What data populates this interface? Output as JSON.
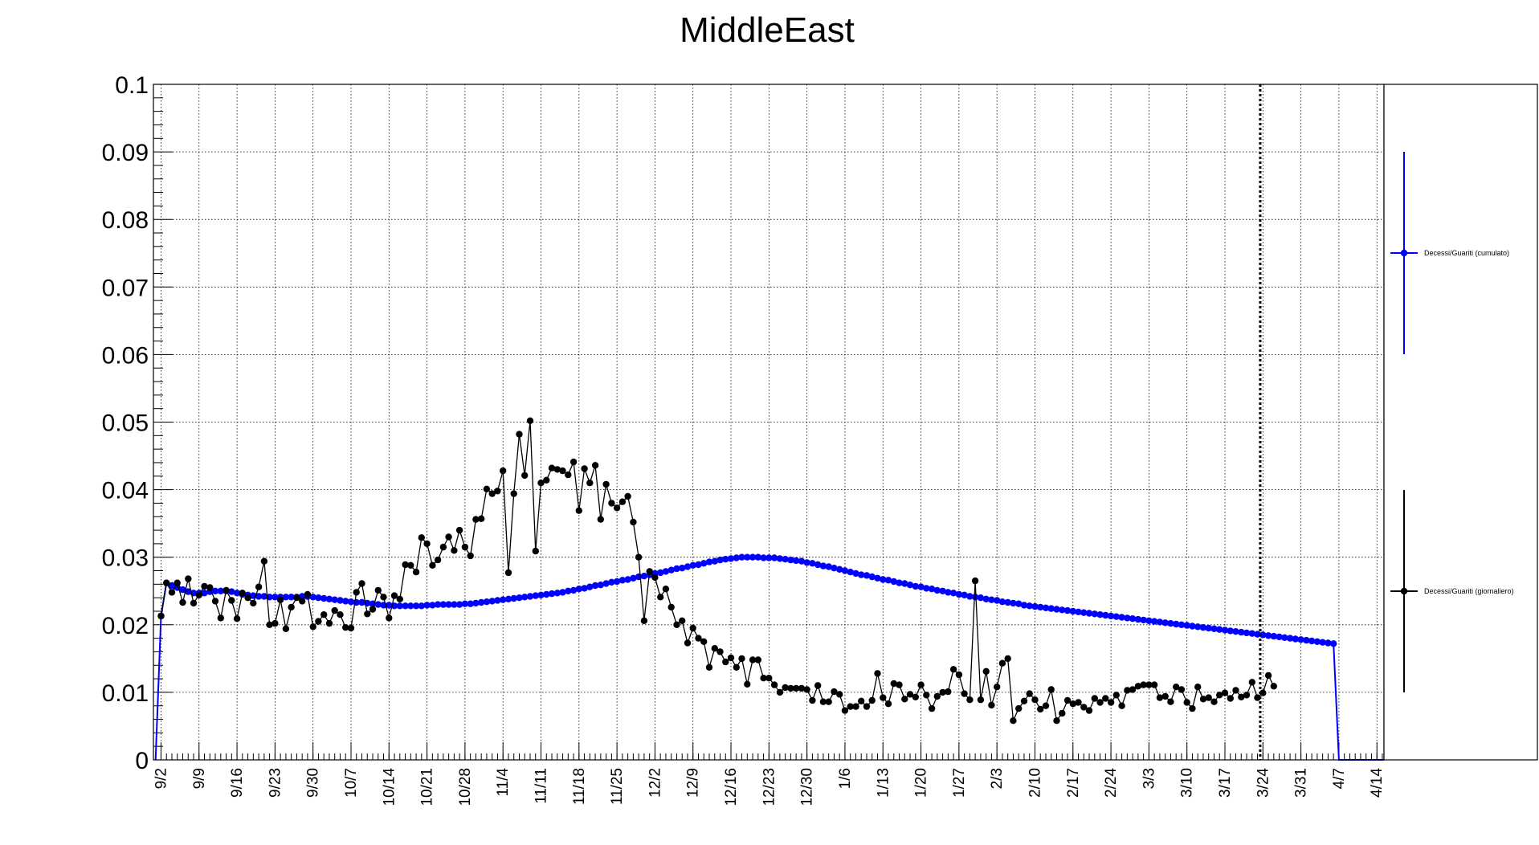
{
  "chart_data": {
    "type": "line",
    "title": "MiddleEast",
    "xlabel": "",
    "ylabel": "",
    "ylim": [
      0,
      0.1
    ],
    "yticks": [
      "0",
      "0.01",
      "0.02",
      "0.03",
      "0.04",
      "0.05",
      "0.06",
      "0.07",
      "0.08",
      "0.09",
      "0.1"
    ],
    "x_range_days": [
      -1.4,
      225.3
    ],
    "x_tick_labels": [
      "9/2",
      "9/9",
      "9/16",
      "9/23",
      "9/30",
      "10/7",
      "10/14",
      "10/21",
      "10/28",
      "11/4",
      "11/11",
      "11/18",
      "11/25",
      "12/2",
      "12/9",
      "12/16",
      "12/23",
      "12/30",
      "1/6",
      "1/13",
      "1/20",
      "1/27",
      "2/3",
      "2/10",
      "2/17",
      "2/24",
      "3/3",
      "3/10",
      "3/17",
      "3/24",
      "3/31",
      "4/7",
      "4/14"
    ],
    "x_tick_label_interval_days": 7,
    "grid": true,
    "marker_line_day": 202.5,
    "legend_position": "right",
    "series": [
      {
        "name": "Decessi/Guariti (cumulato)",
        "color": "#0000ff",
        "day_start": 0,
        "day_step": 1,
        "values": [
          0.0213,
          0.0262,
          0.0258,
          0.0255,
          0.0252,
          0.0249,
          0.0247,
          0.0247,
          0.0247,
          0.0249,
          0.025,
          0.025,
          0.025,
          0.0249,
          0.0247,
          0.0245,
          0.0244,
          0.0243,
          0.0242,
          0.0242,
          0.0241,
          0.0241,
          0.0241,
          0.0241,
          0.0241,
          0.0241,
          0.0242,
          0.0242,
          0.0241,
          0.024,
          0.0239,
          0.0238,
          0.0237,
          0.0236,
          0.0235,
          0.0234,
          0.0233,
          0.0233,
          0.0232,
          0.0231,
          0.023,
          0.0229,
          0.0229,
          0.0228,
          0.0228,
          0.0228,
          0.0228,
          0.0228,
          0.0228,
          0.0229,
          0.0229,
          0.023,
          0.023,
          0.023,
          0.023,
          0.023,
          0.0231,
          0.0231,
          0.0232,
          0.0233,
          0.0234,
          0.0235,
          0.0236,
          0.0237,
          0.0238,
          0.0239,
          0.024,
          0.0241,
          0.0242,
          0.0243,
          0.0244,
          0.0245,
          0.0246,
          0.0247,
          0.0248,
          0.025,
          0.0251,
          0.0253,
          0.0254,
          0.0256,
          0.0258,
          0.0259,
          0.0261,
          0.0263,
          0.0264,
          0.0266,
          0.0267,
          0.0269,
          0.0271,
          0.0272,
          0.0274,
          0.0276,
          0.0277,
          0.0279,
          0.0281,
          0.0283,
          0.0284,
          0.0286,
          0.0288,
          0.0289,
          0.0291,
          0.0293,
          0.0294,
          0.0296,
          0.0297,
          0.0298,
          0.0299,
          0.03,
          0.03,
          0.03,
          0.03,
          0.0299,
          0.0299,
          0.0299,
          0.0298,
          0.0297,
          0.0296,
          0.0295,
          0.0294,
          0.0292,
          0.0291,
          0.0289,
          0.0287,
          0.0286,
          0.0284,
          0.0282,
          0.028,
          0.0278,
          0.0276,
          0.0274,
          0.0273,
          0.0271,
          0.0269,
          0.0267,
          0.0266,
          0.0264,
          0.0262,
          0.0261,
          0.0259,
          0.0257,
          0.0256,
          0.0254,
          0.0253,
          0.0251,
          0.025,
          0.0248,
          0.0247,
          0.0245,
          0.0244,
          0.0242,
          0.0241,
          0.024,
          0.0238,
          0.0237,
          0.0236,
          0.0234,
          0.0233,
          0.0232,
          0.0231,
          0.0229,
          0.0228,
          0.0227,
          0.0226,
          0.0225,
          0.0224,
          0.0223,
          0.0222,
          0.0221,
          0.022,
          0.0219,
          0.0218,
          0.0217,
          0.0216,
          0.0215,
          0.0214,
          0.0213,
          0.0212,
          0.0211,
          0.021,
          0.0209,
          0.0208,
          0.0207,
          0.0206,
          0.0205,
          0.0204,
          0.0203,
          0.0202,
          0.0201,
          0.02,
          0.0199,
          0.0198,
          0.0197,
          0.0196,
          0.0195,
          0.0194,
          0.0193,
          0.0192,
          0.0191,
          0.019,
          0.0189,
          0.0188,
          0.0187,
          0.0186,
          0.0185,
          0.0184,
          0.0183,
          0.0182,
          0.0181,
          0.018,
          0.0179,
          0.0178,
          0.0177,
          0.0176,
          0.0175,
          0.0174,
          0.0173,
          0.0172
        ]
      },
      {
        "name": "Decessi/Guariti (giornaliero)",
        "color": "#000000",
        "day_start": 0,
        "day_step": 1,
        "values": [
          0.0213,
          0.0262,
          0.0248,
          0.0262,
          0.0233,
          0.0268,
          0.0232,
          0.0244,
          0.0257,
          0.0255,
          0.0235,
          0.021,
          0.0251,
          0.0236,
          0.0209,
          0.0247,
          0.024,
          0.0232,
          0.0256,
          0.0294,
          0.02,
          0.0202,
          0.0237,
          0.0194,
          0.0226,
          0.024,
          0.0235,
          0.0245,
          0.0197,
          0.0205,
          0.0215,
          0.0202,
          0.0221,
          0.0215,
          0.0196,
          0.0195,
          0.0248,
          0.0261,
          0.0216,
          0.0223,
          0.0251,
          0.0241,
          0.021,
          0.0243,
          0.0238,
          0.0289,
          0.0288,
          0.0278,
          0.0329,
          0.032,
          0.0288,
          0.0296,
          0.0315,
          0.033,
          0.031,
          0.034,
          0.0315,
          0.0302,
          0.0356,
          0.0357,
          0.0401,
          0.0394,
          0.0398,
          0.0428,
          0.0277,
          0.0394,
          0.0482,
          0.0421,
          0.0502,
          0.0309,
          0.041,
          0.0414,
          0.0432,
          0.043,
          0.0428,
          0.0422,
          0.0441,
          0.0369,
          0.0431,
          0.041,
          0.0436,
          0.0356,
          0.0408,
          0.038,
          0.0373,
          0.0382,
          0.039,
          0.0352,
          0.03,
          0.0206,
          0.0279,
          0.027,
          0.0241,
          0.0253,
          0.0226,
          0.02,
          0.0206,
          0.0173,
          0.0195,
          0.018,
          0.0175,
          0.0137,
          0.0165,
          0.016,
          0.0145,
          0.0151,
          0.0137,
          0.015,
          0.0112,
          0.0148,
          0.0148,
          0.0121,
          0.0121,
          0.0111,
          0.01,
          0.0107,
          0.0106,
          0.0106,
          0.0106,
          0.0104,
          0.0088,
          0.011,
          0.0086,
          0.0086,
          0.0101,
          0.0097,
          0.0073,
          0.0079,
          0.0079,
          0.0087,
          0.0079,
          0.0088,
          0.0128,
          0.0092,
          0.0083,
          0.0113,
          0.0111,
          0.009,
          0.0097,
          0.0093,
          0.0111,
          0.0096,
          0.0076,
          0.0094,
          0.01,
          0.0101,
          0.0134,
          0.0126,
          0.0098,
          0.0089,
          0.0265,
          0.0089,
          0.0131,
          0.0081,
          0.0108,
          0.0143,
          0.015,
          0.0058,
          0.0076,
          0.0087,
          0.0098,
          0.0089,
          0.0075,
          0.008,
          0.0104,
          0.0058,
          0.0069,
          0.0088,
          0.0083,
          0.0085,
          0.0078,
          0.0073,
          0.0091,
          0.0085,
          0.0091,
          0.0085,
          0.0096,
          0.008,
          0.0103,
          0.0104,
          0.0109,
          0.0111,
          0.0111,
          0.0111,
          0.0092,
          0.0094,
          0.0086,
          0.0108,
          0.0104,
          0.0085,
          0.0076,
          0.0108,
          0.009,
          0.0092,
          0.0086,
          0.0096,
          0.0099,
          0.0091,
          0.0103,
          0.0093,
          0.0096,
          0.0115,
          0.0092,
          0.0099,
          0.0125,
          0.0109
        ]
      }
    ]
  }
}
